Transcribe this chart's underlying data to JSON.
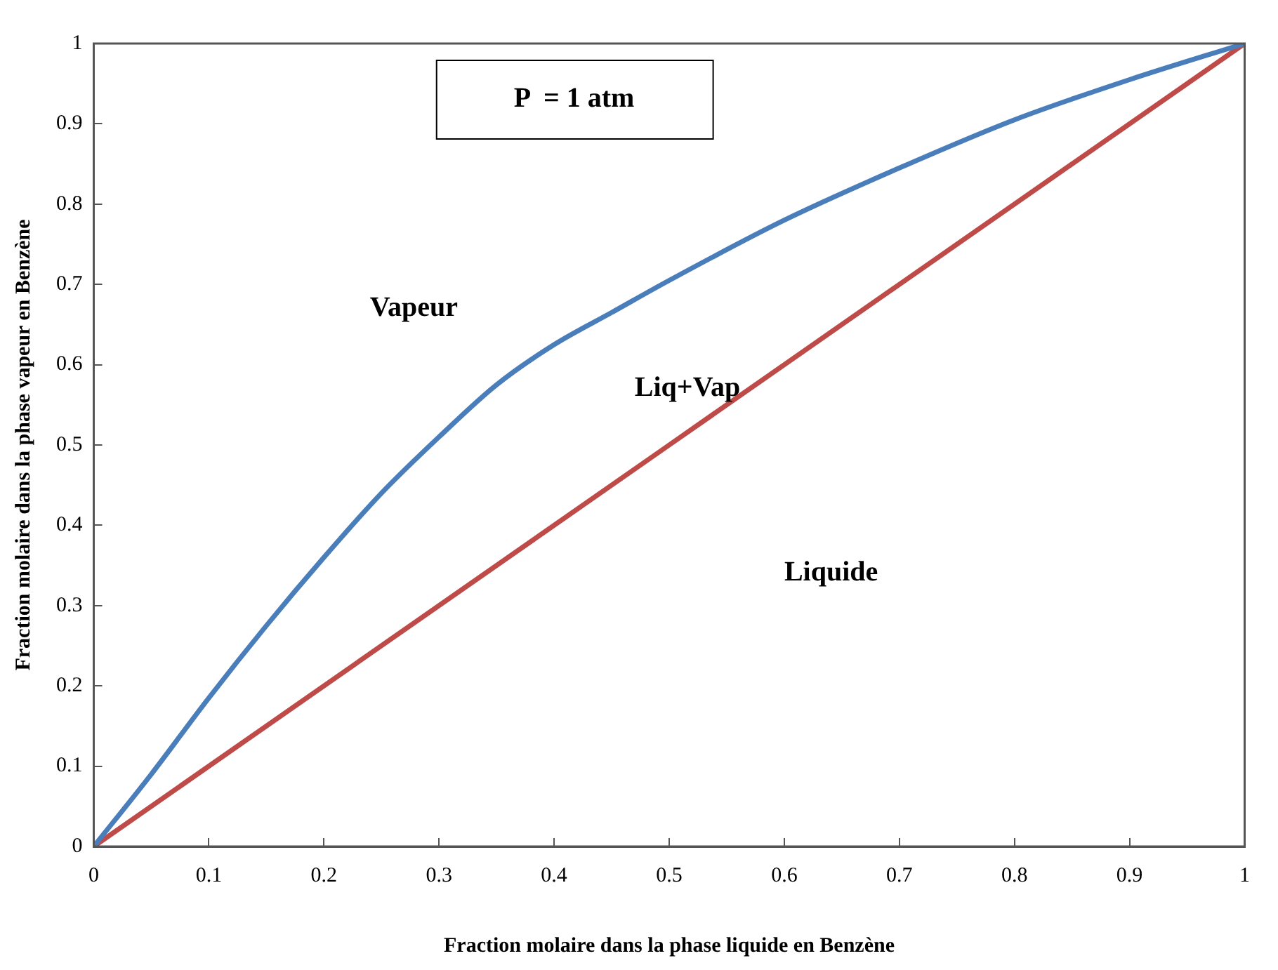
{
  "chart_data": {
    "type": "line",
    "xlabel": "Fraction molaire dans la phase liquide en Benzène",
    "ylabel": "Fraction molaire dans la phase vapeur en Benzène",
    "annotations": [
      "P  = 1 atm",
      "Vapeur",
      "Liq+Vap",
      "Liquide"
    ],
    "series": [
      {
        "color": "#4a7ebb",
        "x": [
          0,
          0.05,
          0.1,
          0.15,
          0.2,
          0.25,
          0.3,
          0.35,
          0.4,
          0.45,
          0.5,
          0.6,
          0.7,
          0.8,
          0.9,
          1
        ],
        "values": [
          0,
          0.09,
          0.185,
          0.275,
          0.36,
          0.44,
          0.51,
          0.575,
          0.625,
          0.665,
          0.705,
          0.78,
          0.845,
          0.905,
          0.955,
          1
        ]
      },
      {
        "color": "#be4b48",
        "x": [
          0,
          1
        ],
        "values": [
          0,
          1
        ]
      }
    ],
    "xlim": [
      0,
      1
    ],
    "ylim": [
      0,
      1
    ],
    "xticks": [
      0,
      0.1,
      0.2,
      0.3,
      0.4,
      0.5,
      0.6,
      0.7,
      0.8,
      0.9,
      1
    ],
    "yticks": [
      0,
      0.1,
      0.2,
      0.3,
      0.4,
      0.5,
      0.6,
      0.7,
      0.8,
      0.9,
      1
    ],
    "grid": false,
    "legend": false,
    "marker": "none",
    "line_style": "solid"
  }
}
